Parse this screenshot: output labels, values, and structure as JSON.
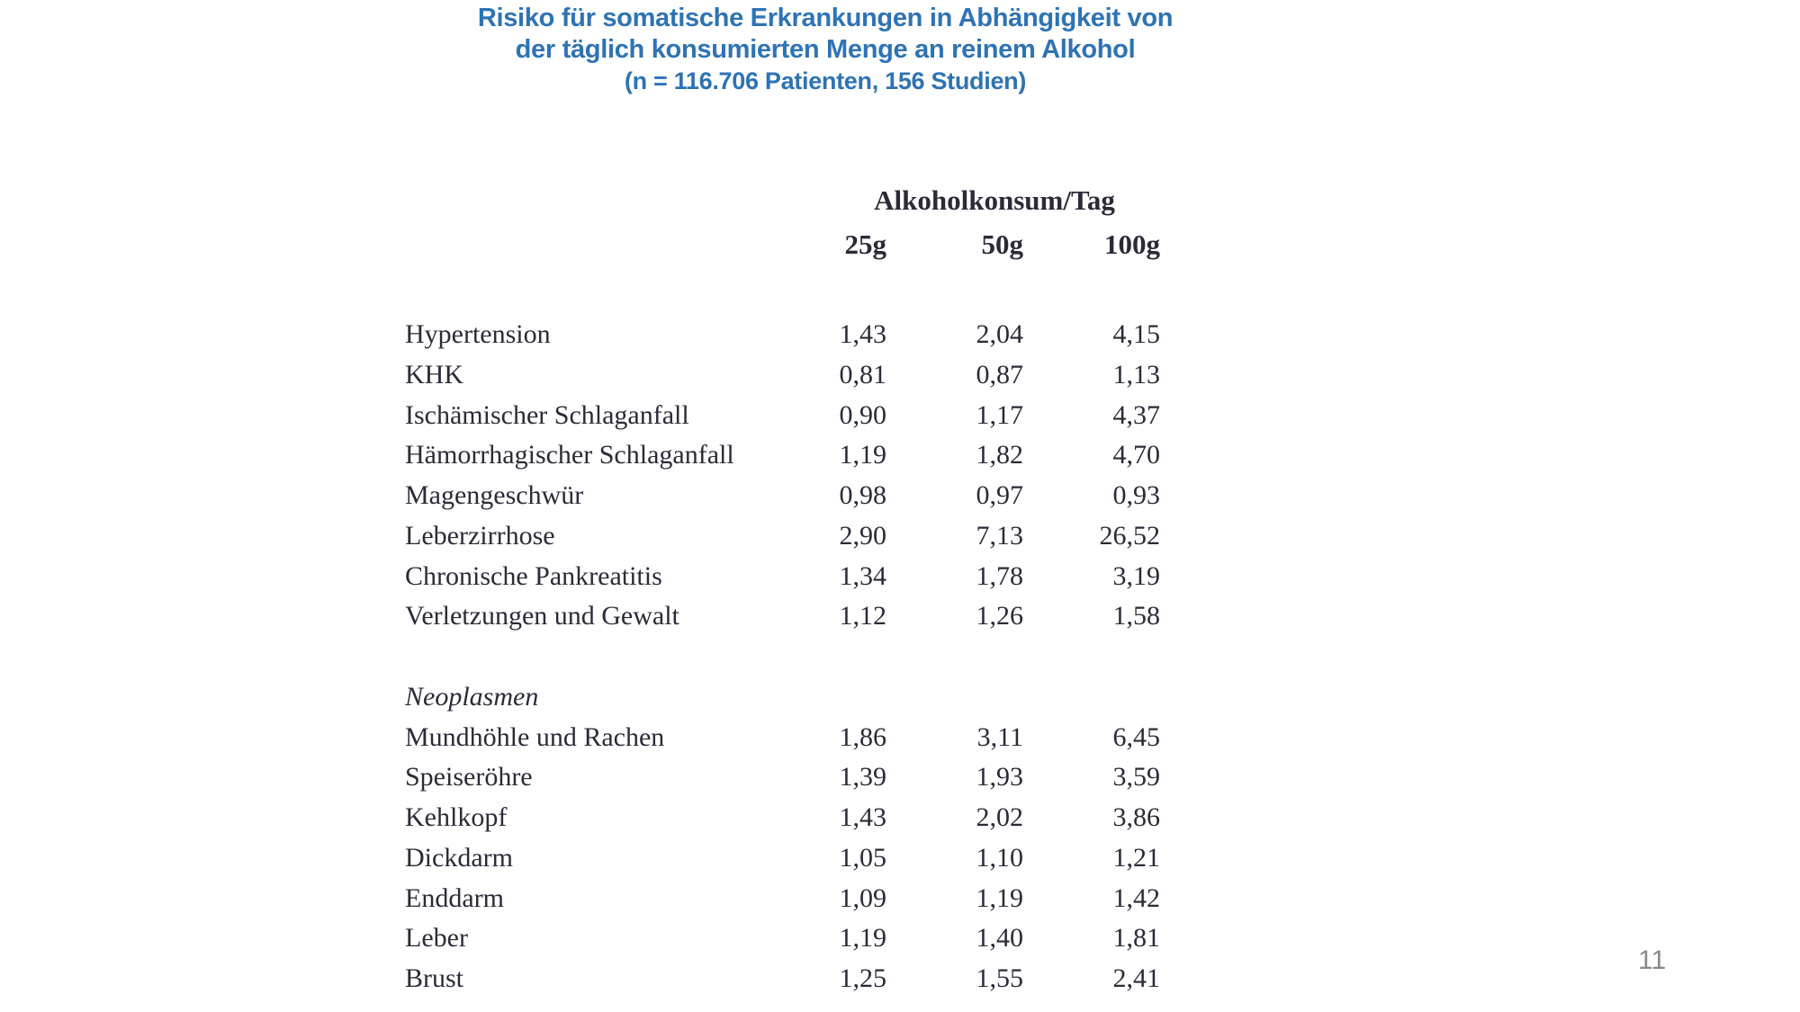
{
  "title": {
    "line1": "Risiko für somatische Erkrankungen in Abhängigkeit von",
    "line2": "der täglich konsumierten Menge an reinem Alkohol",
    "line3": "(n = 116.706 Patienten, 156 Studien)"
  },
  "footer": {
    "page_number": "11"
  },
  "colors": {
    "title_blue": "#2e73b4",
    "body_text": "#2b2b38",
    "page_number_gray": "#8a8a8a",
    "background": "#ffffff"
  },
  "chart_data": {
    "type": "table",
    "title": "Risiko für somatische Erkrankungen in Abhängigkeit von der täglich konsumierten Menge an reinem Alkohol",
    "subtitle": "(n = 116.706 Patienten, 156 Studien)",
    "column_group_header": "Alkoholkonsum/Tag",
    "columns": [
      "25g",
      "50g",
      "100g"
    ],
    "section1": {
      "label": "",
      "rows": [
        {
          "label": "Hypertension",
          "values": [
            "1,43",
            "2,04",
            "4,15"
          ]
        },
        {
          "label": "KHK",
          "values": [
            "0,81",
            "0,87",
            "1,13"
          ]
        },
        {
          "label": "Ischämischer Schlaganfall",
          "values": [
            "0,90",
            "1,17",
            "4,37"
          ]
        },
        {
          "label": "Hämorrhagischer Schlaganfall",
          "values": [
            "1,19",
            "1,82",
            "4,70"
          ]
        },
        {
          "label": "Magengeschwür",
          "values": [
            "0,98",
            "0,97",
            "0,93"
          ]
        },
        {
          "label": "Leberzirrhose",
          "values": [
            "2,90",
            "7,13",
            "26,52"
          ]
        },
        {
          "label": "Chronische Pankreatitis",
          "values": [
            "1,34",
            "1,78",
            "3,19"
          ]
        },
        {
          "label": "Verletzungen und Gewalt",
          "values": [
            "1,12",
            "1,26",
            "1,58"
          ]
        }
      ]
    },
    "section2": {
      "label": "Neoplasmen",
      "rows": [
        {
          "label": "Mundhöhle und Rachen",
          "values": [
            "1,86",
            "3,11",
            "6,45"
          ]
        },
        {
          "label": "Speiseröhre",
          "values": [
            "1,39",
            "1,93",
            "3,59"
          ]
        },
        {
          "label": "Kehlkopf",
          "values": [
            "1,43",
            "2,02",
            "3,86"
          ]
        },
        {
          "label": "Dickdarm",
          "values": [
            "1,05",
            "1,10",
            "1,21"
          ]
        },
        {
          "label": "Enddarm",
          "values": [
            "1,09",
            "1,19",
            "1,42"
          ]
        },
        {
          "label": "Leber",
          "values": [
            "1,19",
            "1,40",
            "1,81"
          ]
        },
        {
          "label": "Brust",
          "values": [
            "1,25",
            "1,55",
            "2,41"
          ]
        }
      ]
    }
  }
}
